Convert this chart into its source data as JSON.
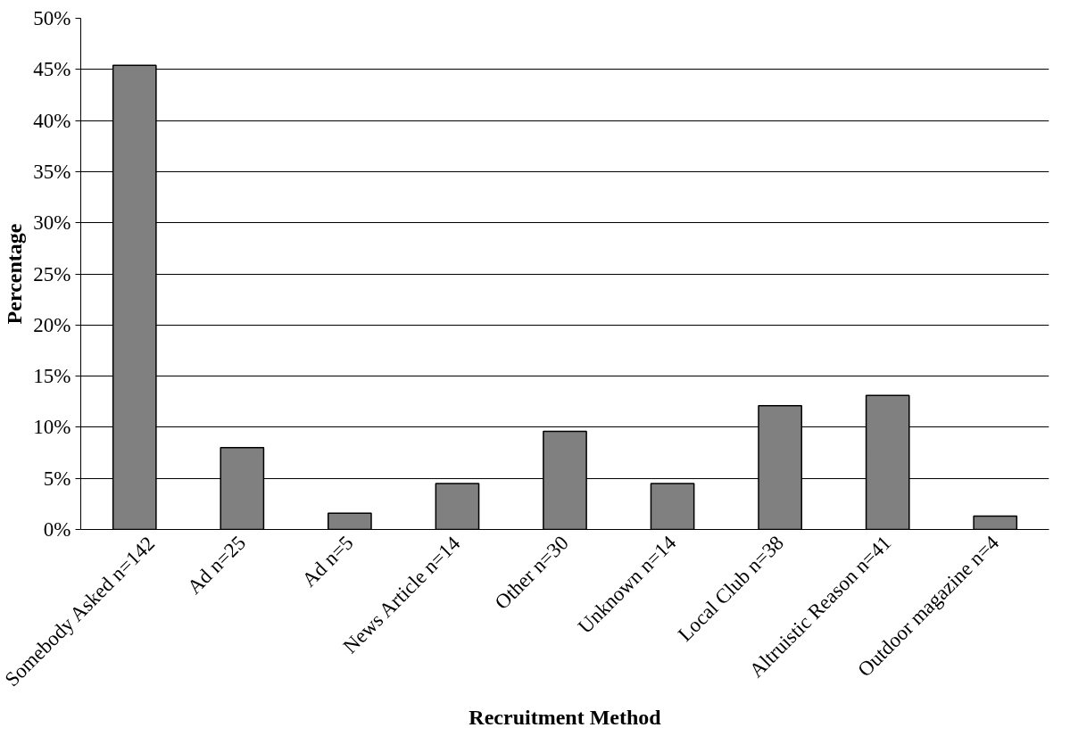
{
  "chart_data": {
    "type": "bar",
    "xlabel": "Recruitment Method",
    "ylabel": "Percentage",
    "categories": [
      "Somebody Asked n=142",
      "Ad n=25",
      "Ad n=5",
      "News Article n=14",
      "Other n=30",
      "Unknown n=14",
      "Local Club n=38",
      "Altruistic Reason n=41",
      "Outdoor magazine n=4"
    ],
    "values": [
      45.4,
      8.0,
      1.6,
      4.5,
      9.6,
      4.5,
      12.1,
      13.1,
      1.3
    ],
    "color": "#808080",
    "ylim": [
      0,
      50
    ],
    "yticks": [
      {
        "value": 0,
        "label": "0%"
      },
      {
        "value": 5,
        "label": "5%"
      },
      {
        "value": 10,
        "label": "10%"
      },
      {
        "value": 15,
        "label": "15%"
      },
      {
        "value": 20,
        "label": "20%"
      },
      {
        "value": 25,
        "label": "25%"
      },
      {
        "value": 30,
        "label": "30%"
      },
      {
        "value": 35,
        "label": "35%"
      },
      {
        "value": 40,
        "label": "40%"
      },
      {
        "value": 45,
        "label": "45%"
      },
      {
        "value": 50,
        "label": "50%"
      }
    ],
    "grid": "y"
  }
}
